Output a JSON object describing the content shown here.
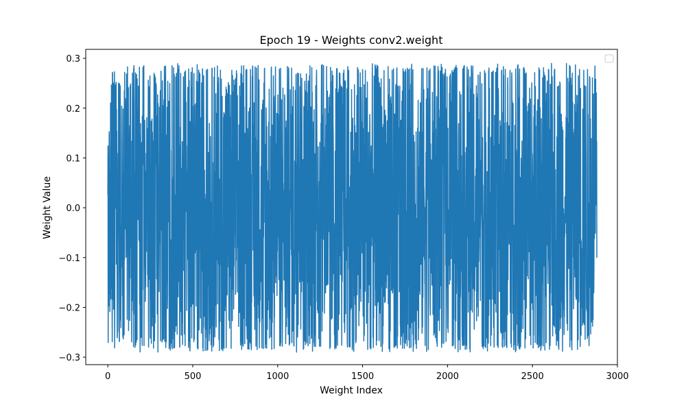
{
  "chart_data": {
    "type": "line",
    "title": "Epoch 19 - Weights conv2.weight",
    "xlabel": "Weight Index",
    "ylabel": "Weight Value",
    "xlim": [
      -130,
      3000
    ],
    "ylim": [
      -0.315,
      0.318
    ],
    "x_ticks": [
      0,
      500,
      1000,
      1500,
      2000,
      2500,
      3000
    ],
    "y_ticks": [
      -0.3,
      -0.2,
      -0.1,
      0.0,
      0.1,
      0.2,
      0.3
    ],
    "x_tick_labels": [
      "0",
      "500",
      "1000",
      "1500",
      "2000",
      "2500",
      "3000"
    ],
    "y_tick_labels": [
      "−0.3",
      "−0.2",
      "−0.1",
      "0.0",
      "0.1",
      "0.2",
      "0.3"
    ],
    "grid": false,
    "legend": {
      "placement": "top-right",
      "entries": []
    },
    "series": [
      {
        "color": "#1f77b4",
        "n_points": 2880,
        "x_start": 0,
        "x_end": 2879,
        "value_range": [
          -0.29,
          0.29
        ],
        "peak_max_values": [
          0.253,
          0.273,
          0.283,
          0.27,
          0.287,
          0.276,
          0.281,
          0.285,
          0.268,
          0.286,
          0.288,
          0.283,
          0.287,
          0.271,
          0.286,
          0.284,
          0.272,
          0.285,
          0.287,
          0.283,
          0.283,
          0.287,
          0.284,
          0.27,
          0.287,
          0.272,
          0.283,
          0.283,
          0.286,
          0.28,
          0.27,
          0.286,
          0.284,
          0.265
        ],
        "peak_min_values": [
          -0.262,
          -0.271,
          -0.285,
          -0.27,
          -0.285,
          -0.283,
          -0.288,
          -0.279,
          -0.285,
          -0.285,
          -0.287,
          -0.286,
          -0.279,
          -0.287,
          -0.281,
          -0.288,
          -0.286,
          -0.275,
          -0.284,
          -0.287,
          -0.285,
          -0.283,
          -0.286,
          -0.282,
          -0.286,
          -0.287,
          -0.283,
          -0.285,
          -0.284,
          -0.28,
          -0.286,
          -0.283,
          -0.28,
          -0.261
        ]
      }
    ]
  }
}
